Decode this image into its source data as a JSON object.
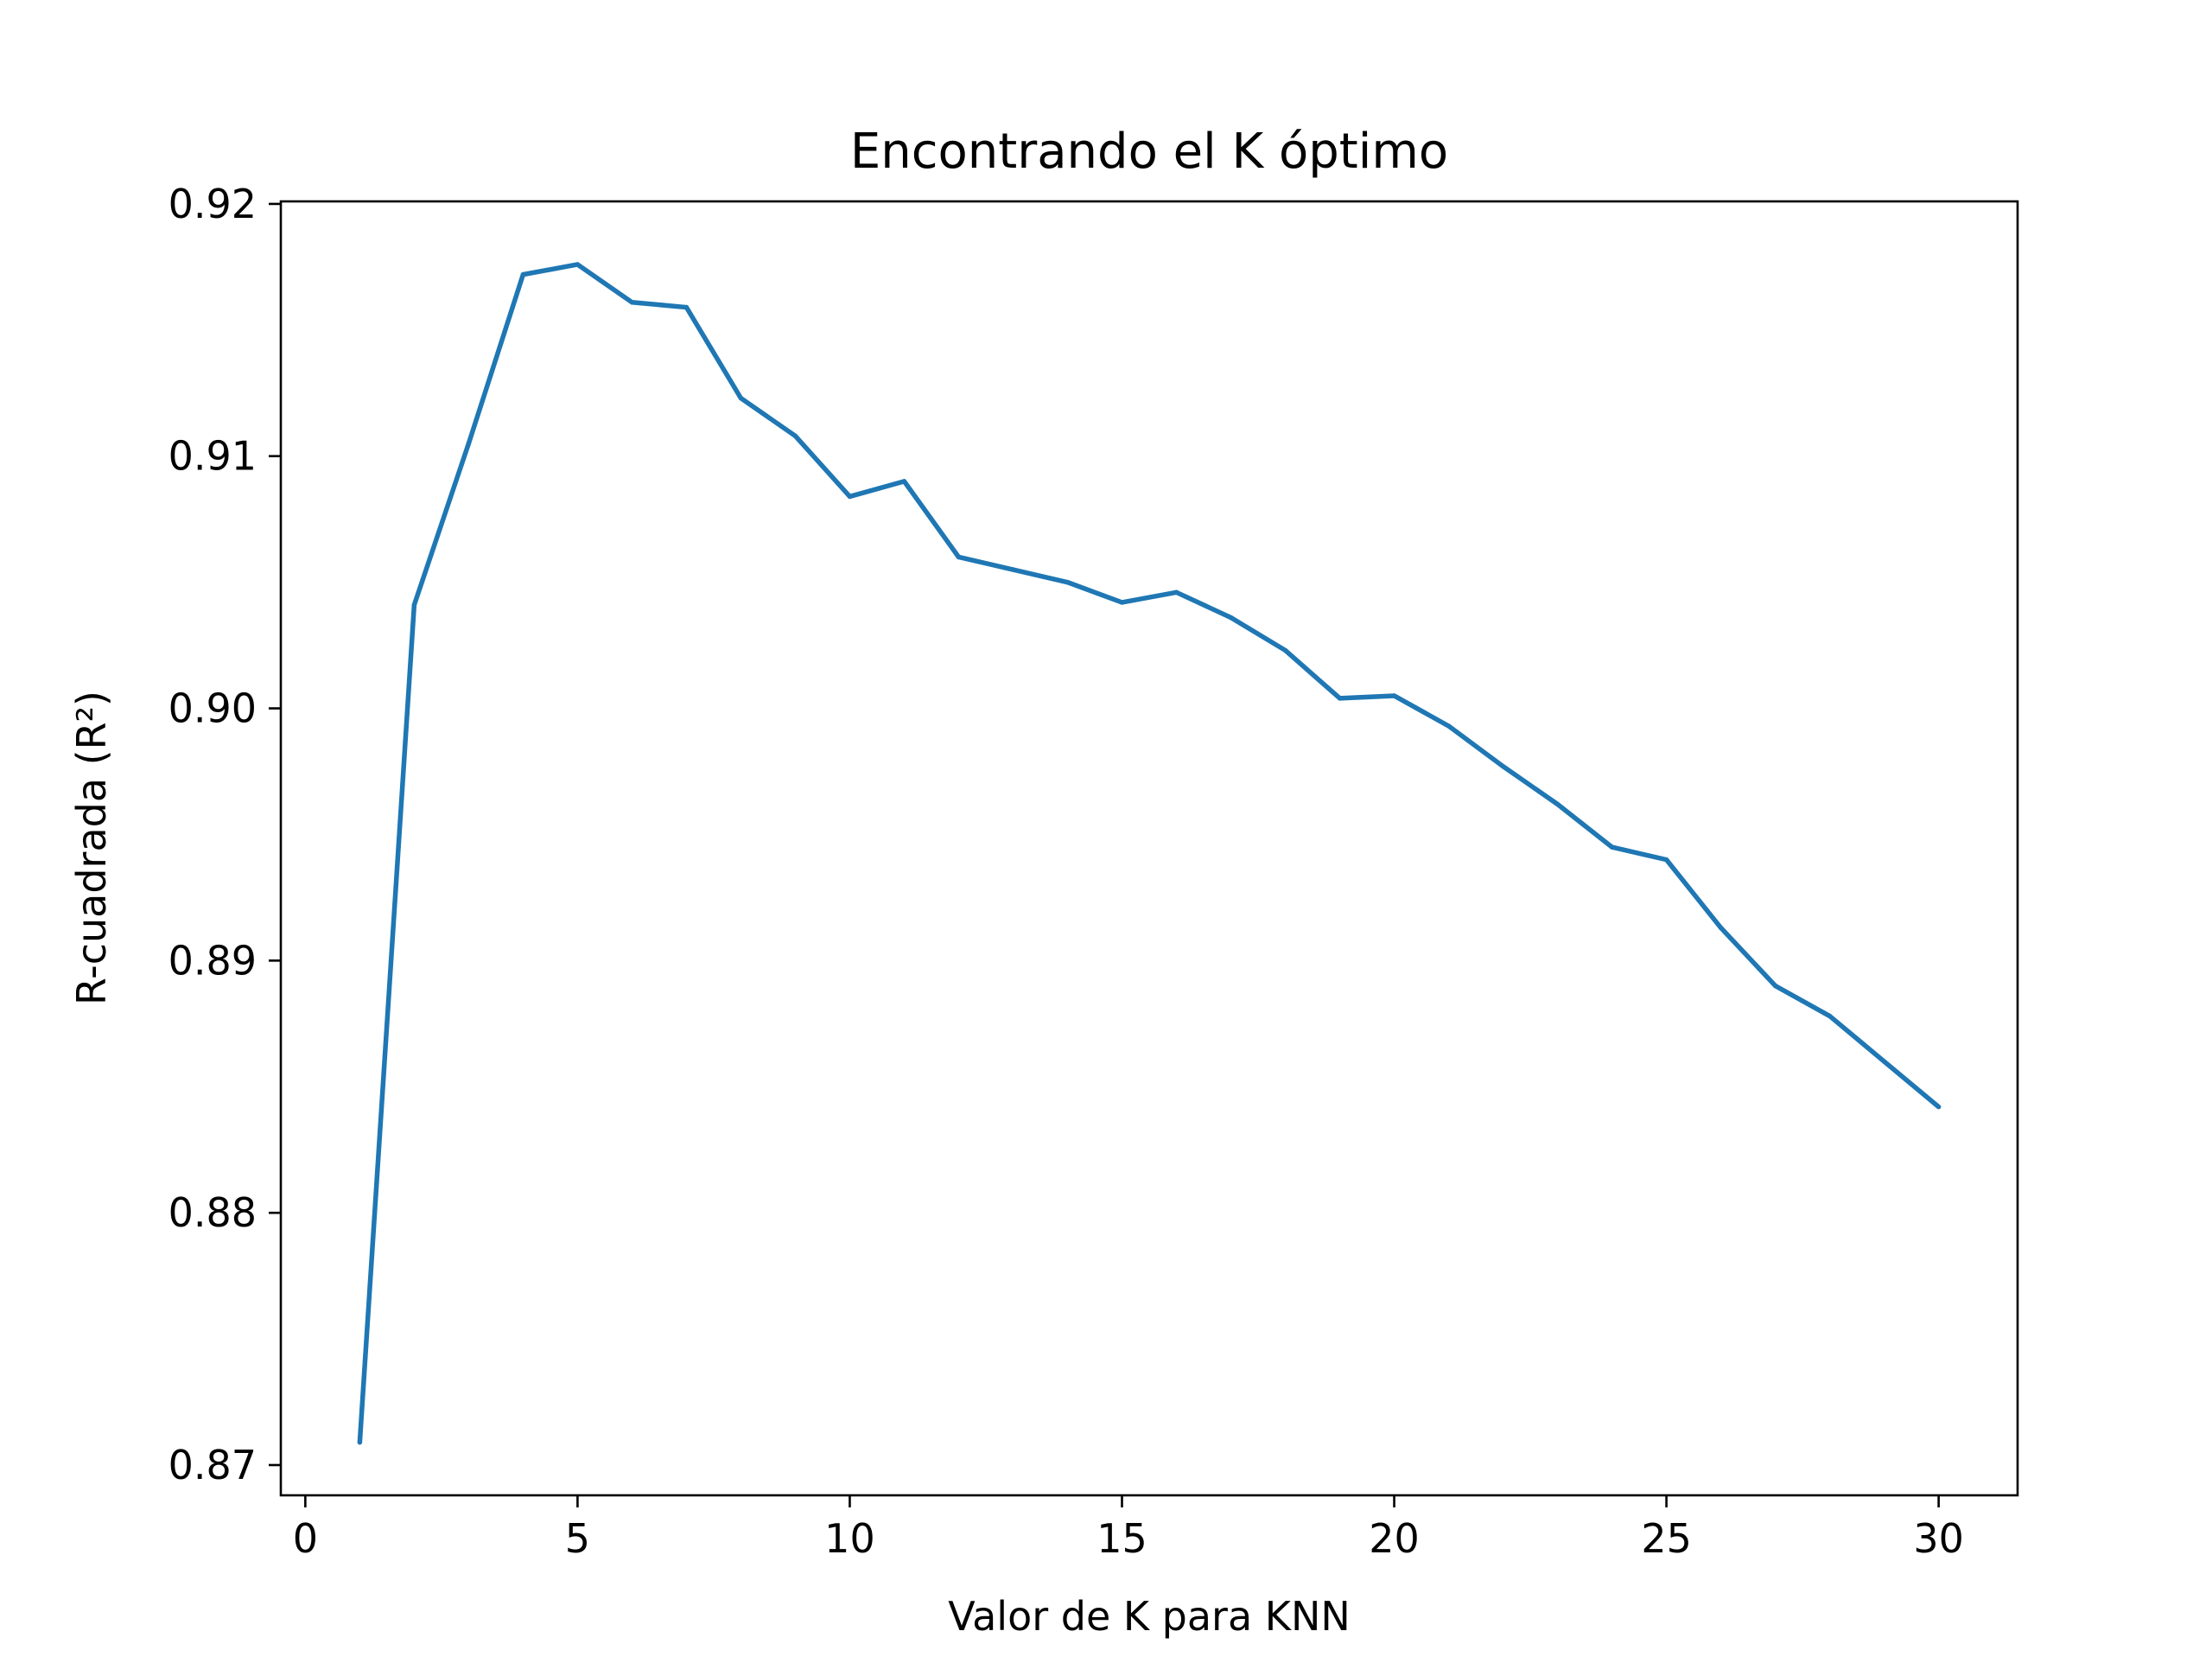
{
  "chart_data": {
    "type": "line",
    "title": "Encontrando el K óptimo",
    "xlabel": "Valor de K para KNN",
    "ylabel": "R-cuadrada (R²)",
    "xlim": [
      -0.45,
      31.45
    ],
    "ylim": [
      0.8688,
      0.9201
    ],
    "x_ticks": [
      0,
      5,
      10,
      15,
      20,
      25,
      30
    ],
    "x_tick_labels": [
      "0",
      "5",
      "10",
      "15",
      "20",
      "25",
      "30"
    ],
    "y_ticks": [
      0.87,
      0.88,
      0.89,
      0.9,
      0.91,
      0.92
    ],
    "y_tick_labels": [
      "0.87",
      "0.88",
      "0.89",
      "0.90",
      "0.91",
      "0.92"
    ],
    "grid": false,
    "line_color": "#1f77b4",
    "series": [
      {
        "x": [
          1,
          2,
          3,
          4,
          5,
          6,
          7,
          8,
          9,
          10,
          11,
          12,
          13,
          14,
          15,
          16,
          17,
          18,
          19,
          20,
          21,
          22,
          23,
          24,
          25,
          26,
          27,
          28,
          29,
          30
        ],
        "values": [
          0.8709,
          0.9041,
          0.9105,
          0.9172,
          0.9176,
          0.9161,
          0.9159,
          0.9123,
          0.9108,
          0.9084,
          0.909,
          0.906,
          0.9055,
          0.905,
          0.9042,
          0.9046,
          0.9036,
          0.9023,
          0.9004,
          0.9005,
          0.8993,
          0.8977,
          0.8962,
          0.8945,
          0.894,
          0.8913,
          0.889,
          0.8878,
          0.886,
          0.8842
        ]
      }
    ]
  }
}
